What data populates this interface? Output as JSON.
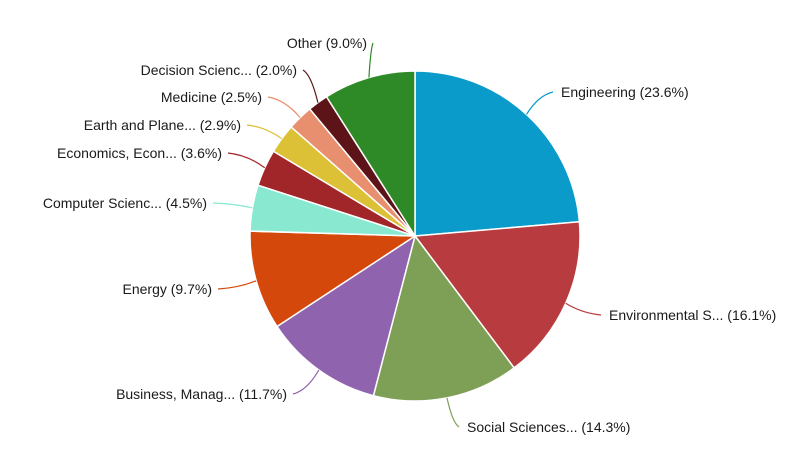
{
  "chart_data": {
    "type": "pie",
    "title": "",
    "start_angle_deg": 0,
    "direction": "clockwise",
    "slices": [
      {
        "name": "Engineering",
        "label": "Engineering (23.6%)",
        "value": 23.6,
        "color": "#0a9bcb"
      },
      {
        "name": "Environmental S...",
        "label": "Environmental S... (16.1%)",
        "value": 16.1,
        "color": "#b83b3f"
      },
      {
        "name": "Social Sciences...",
        "label": "Social Sciences... (14.3%)",
        "value": 14.3,
        "color": "#7e9f56"
      },
      {
        "name": "Business, Manag...",
        "label": "Business, Manag... (11.7%)",
        "value": 11.7,
        "color": "#9063ae"
      },
      {
        "name": "Energy",
        "label": "Energy (9.7%)",
        "value": 9.7,
        "color": "#d4480b"
      },
      {
        "name": "Computer Scienc...",
        "label": "Computer Scienc... (4.5%)",
        "value": 4.5,
        "color": "#88e8d0"
      },
      {
        "name": "Economics, Econ...",
        "label": "Economics, Econ... (3.6%)",
        "value": 3.6,
        "color": "#a02629"
      },
      {
        "name": "Earth and Plane...",
        "label": "Earth and Plane... (2.9%)",
        "value": 2.9,
        "color": "#dcc035"
      },
      {
        "name": "Medicine",
        "label": "Medicine (2.5%)",
        "value": 2.5,
        "color": "#e88f6f"
      },
      {
        "name": "Decision Scienc...",
        "label": "Decision Scienc... (2.0%)",
        "value": 2.0,
        "color": "#5c1418"
      },
      {
        "name": "Other",
        "label": "Other (9.0%)",
        "value": 9.0,
        "color": "#2e8a26"
      }
    ]
  }
}
